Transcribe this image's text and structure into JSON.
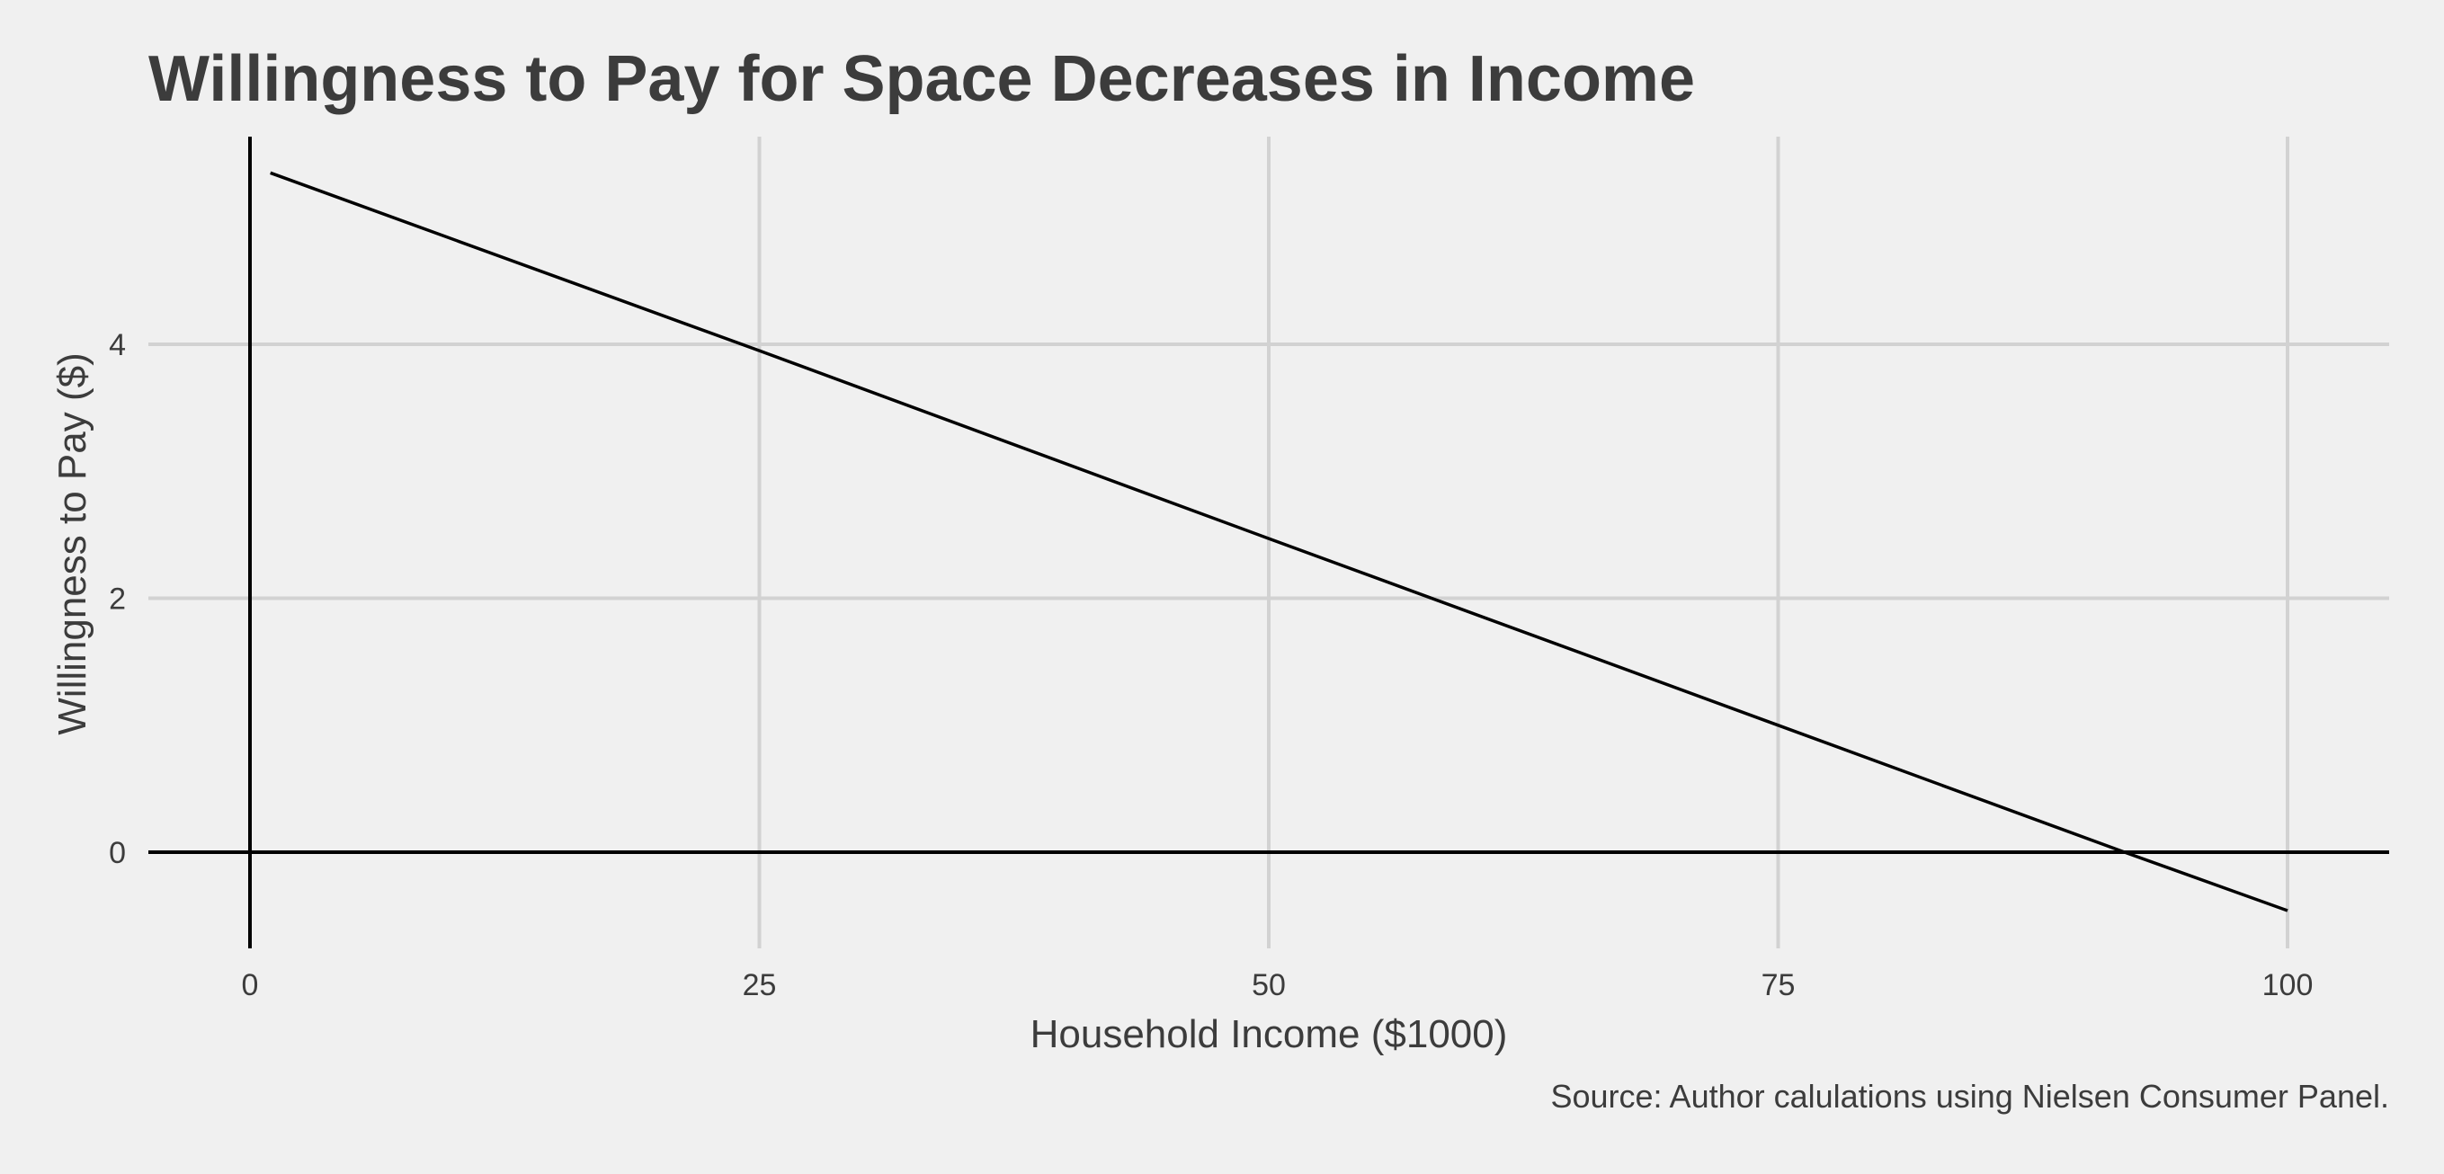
{
  "chart_data": {
    "type": "line",
    "title": "Willingness to Pay for Space Decreases in Income",
    "xlabel": "Household Income ($1000)",
    "ylabel": "Willingness to Pay ($)",
    "caption": "Source: Author calulations using Nielsen Consumer Panel.",
    "xlim": [
      -5,
      105
    ],
    "ylim": [
      -0.75,
      5.6
    ],
    "x_ticks": [
      0,
      25,
      50,
      75,
      100
    ],
    "x_tick_labels": [
      "0",
      "25",
      "50",
      "75",
      "100"
    ],
    "y_ticks": [
      0,
      2,
      4
    ],
    "y_tick_labels": [
      "0",
      "2",
      "4"
    ],
    "grid": true,
    "reference_lines": {
      "x": 0,
      "y": 0
    },
    "series": [
      {
        "x": [
          1,
          25,
          50,
          75,
          92,
          100
        ],
        "y": [
          5.35,
          3.95,
          2.47,
          1.0,
          0.0,
          -0.46
        ],
        "color": "#000000"
      }
    ]
  }
}
